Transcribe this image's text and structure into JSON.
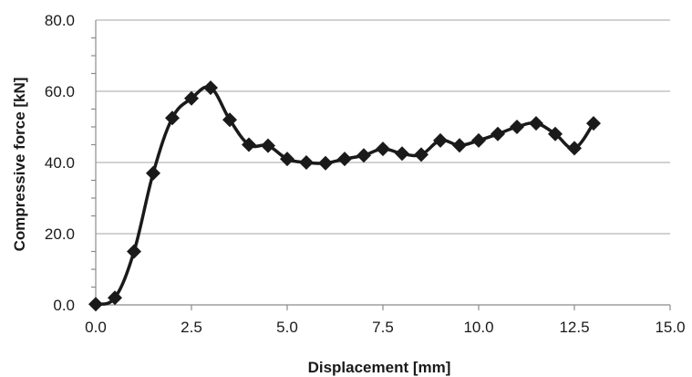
{
  "chart_data": {
    "type": "scatter",
    "title": "",
    "xlabel": "Displacement [mm]",
    "ylabel": "Compressive force [kN]",
    "xlim": [
      0,
      15
    ],
    "ylim": [
      0,
      80
    ],
    "x_ticks": [
      "0.0",
      "2.5",
      "5.0",
      "7.5",
      "10.0",
      "12.5",
      "15.0"
    ],
    "y_ticks": [
      "0.0",
      "20.0",
      "40.0",
      "60.0",
      "80.0"
    ],
    "grid": "horizontal",
    "legend": "none",
    "line_style": "smoothed line with diamond markers",
    "color": "#1a1a1a",
    "series": [
      {
        "x": [
          0,
          0.5,
          1.0,
          1.5,
          2.0,
          2.5,
          3.0,
          3.5,
          4.0,
          4.5,
          5.0,
          5.5,
          6.0,
          6.5,
          7.0,
          7.5,
          8.0,
          8.5,
          9.0,
          9.5,
          10.0,
          10.5,
          11.0,
          11.5,
          12.0,
          12.5,
          13.0
        ],
        "y": [
          0.2,
          2.0,
          15.0,
          37.0,
          52.5,
          58.0,
          61.0,
          52.0,
          45.0,
          44.7,
          41.0,
          40.0,
          39.8,
          41.0,
          42.0,
          43.8,
          42.5,
          42.2,
          46.2,
          44.8,
          46.2,
          48.0,
          50.0,
          51.0,
          48.0,
          44.0,
          51.0
        ]
      }
    ]
  }
}
